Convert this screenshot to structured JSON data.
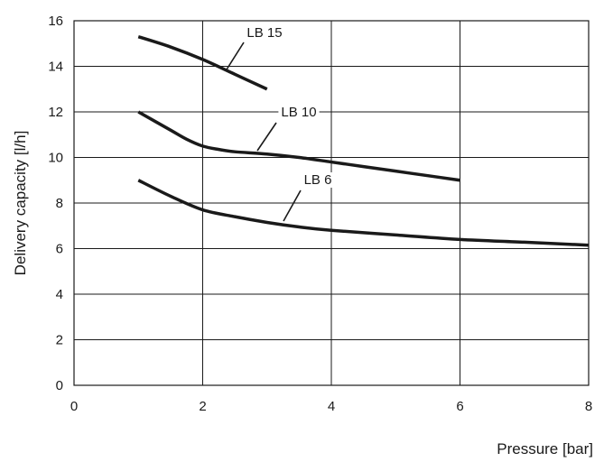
{
  "chart_data": {
    "type": "line",
    "title": "",
    "xlabel": "Pressure [bar]",
    "ylabel": "Delivery capacity [l/h]",
    "xlim": [
      0,
      8
    ],
    "ylim": [
      0,
      16
    ],
    "x_ticks": [
      0,
      2,
      4,
      6,
      8
    ],
    "y_ticks": [
      0,
      2,
      4,
      6,
      8,
      10,
      12,
      14,
      16
    ],
    "grid": true,
    "legend": "inline labels with leader lines",
    "line_color": "#1a1a1a",
    "series": [
      {
        "name": "LB 15",
        "x": [
          1.0,
          1.5,
          2.0,
          2.5,
          3.0
        ],
        "y": [
          15.3,
          14.85,
          14.3,
          13.65,
          13.0
        ]
      },
      {
        "name": "LB 10",
        "x": [
          1.0,
          1.5,
          1.75,
          2.0,
          2.25,
          2.5,
          3.0,
          3.5,
          4.0,
          4.5,
          5.0,
          5.5,
          6.0
        ],
        "y": [
          12.0,
          11.2,
          10.8,
          10.5,
          10.35,
          10.25,
          10.15,
          10.0,
          9.8,
          9.6,
          9.4,
          9.2,
          9.0
        ]
      },
      {
        "name": "LB 6",
        "x": [
          1.0,
          1.5,
          2.0,
          2.5,
          3.0,
          3.5,
          4.0,
          5.0,
          6.0,
          7.0,
          8.0
        ],
        "y": [
          9.0,
          8.3,
          7.7,
          7.4,
          7.15,
          6.95,
          6.8,
          6.6,
          6.4,
          6.28,
          6.15
        ]
      }
    ],
    "annotations": [
      {
        "text": "LB 15",
        "series": "LB 15",
        "x": 2.4,
        "y": 13.8
      },
      {
        "text": "LB 10",
        "series": "LB 10",
        "x": 2.9,
        "y": 10.2
      },
      {
        "text": "LB 6",
        "series": "LB 6",
        "x": 3.2,
        "y": 7.2
      }
    ]
  }
}
